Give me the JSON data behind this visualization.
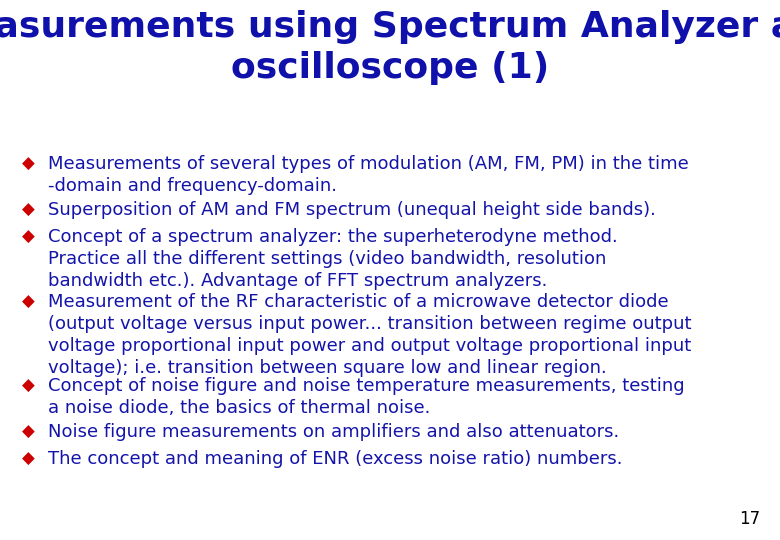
{
  "title_line1": "Measurements using Spectrum Analyzer and",
  "title_line2": "oscilloscope (1)",
  "title_color": "#1010AA",
  "bullet_color": "#CC0000",
  "text_color": "#1414AA",
  "background_color": "#FFFFFF",
  "page_number": "17",
  "bullets": [
    "Measurements of several types of modulation (AM, FM, PM) in the time\n-domain and frequency-domain.",
    "Superposition of AM and FM spectrum (unequal height side bands).",
    "Concept of a spectrum analyzer: the superheterodyne method.\nPractice all the different settings (video bandwidth, resolution\nbandwidth etc.). Advantage of FFT spectrum analyzers.",
    "Measurement of the RF characteristic of a microwave detector diode\n(output voltage versus input power... transition between regime output\nvoltage proportional input power and output voltage proportional input\nvoltage); i.e. transition between square low and linear region.",
    "Concept of noise figure and noise temperature measurements, testing\na noise diode, the basics of thermal noise.",
    "Noise figure measurements on amplifiers and also attenuators.",
    "The concept and meaning of ENR (excess noise ratio) numbers."
  ],
  "title_fontsize": 26,
  "bullet_fontsize": 13,
  "page_num_fontsize": 12,
  "fig_width": 7.8,
  "fig_height": 5.4,
  "dpi": 100
}
